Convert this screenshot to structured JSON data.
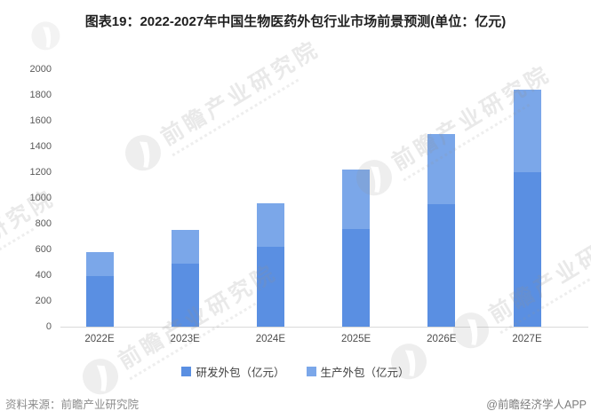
{
  "title": "图表19：2022-2027年中国生物医药外包行业市场前景预测(单位：亿元)",
  "chart_data": {
    "type": "bar",
    "stacked": true,
    "categories": [
      "2022E",
      "2023E",
      "2024E",
      "2025E",
      "2026E",
      "2027E"
    ],
    "series": [
      {
        "name": "研发外包（亿元）",
        "color": "#5a8fe2",
        "values": [
          390,
          490,
          620,
          760,
          950,
          1200
        ]
      },
      {
        "name": "生产外包（亿元）",
        "color": "#7ba7e9",
        "values": [
          190,
          260,
          340,
          460,
          550,
          640
        ]
      }
    ],
    "totals": [
      580,
      750,
      960,
      1220,
      1500,
      1840
    ],
    "title": "图表19：2022-2027年中国生物医药外包行业市场前景预测(单位：亿元)",
    "xlabel": "",
    "ylabel": "",
    "ylim": [
      0,
      2000
    ],
    "ytick_step": 200,
    "grid": false,
    "legend_position": "bottom"
  },
  "footer": {
    "source": "资料来源：前瞻产业研究院",
    "credit": "@前瞻经济学人APP"
  },
  "watermark": {
    "text": "前瞻产业研究院"
  }
}
